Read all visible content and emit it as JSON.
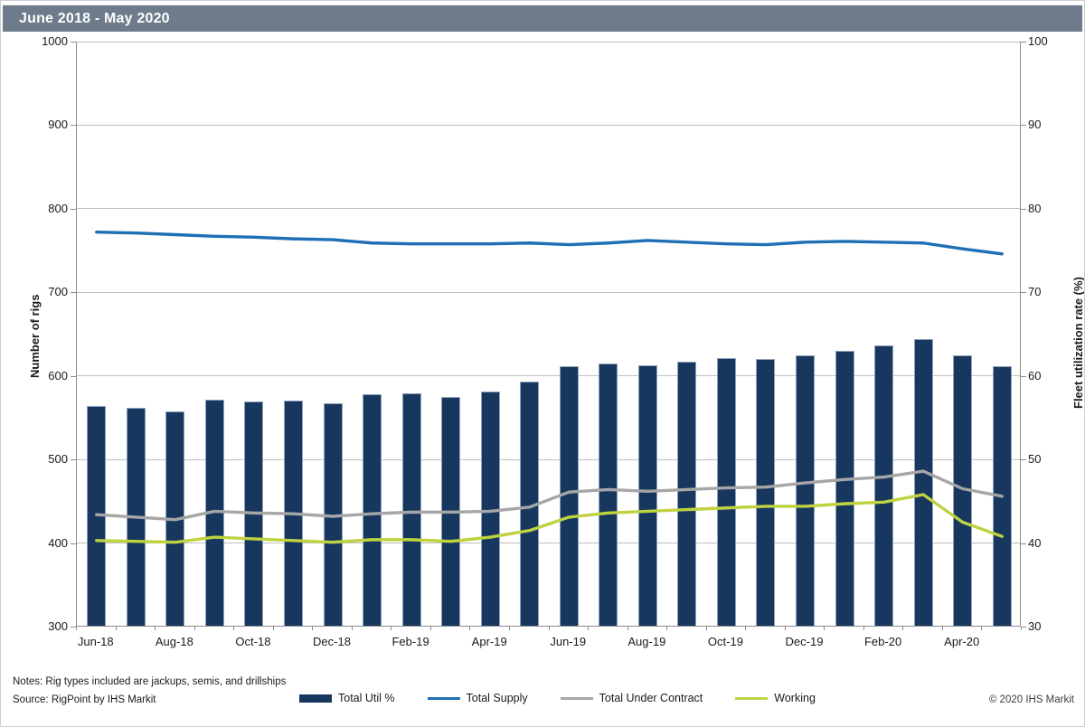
{
  "header": {
    "title": "June 2018 - May 2020"
  },
  "colors": {
    "title_bar": "#6D7B8A",
    "bar_fill": "#17375E",
    "bar_edge": "#8FA2BC",
    "supply_line": "#1F6FB5",
    "contract_line": "#A6A6A6",
    "working_line": "#BFD23F",
    "gridline": "#BFBFBF",
    "axis_line": "#8C8C8C",
    "text": "#1A1A1A"
  },
  "chart_data": {
    "type": "combo-bar-line",
    "categories": [
      "Jun-18",
      "Jul-18",
      "Aug-18",
      "Sep-18",
      "Oct-18",
      "Nov-18",
      "Dec-18",
      "Jan-19",
      "Feb-19",
      "Mar-19",
      "Apr-19",
      "May-19",
      "Jun-19",
      "Jul-19",
      "Aug-19",
      "Sep-19",
      "Oct-19",
      "Nov-19",
      "Dec-19",
      "Jan-20",
      "Feb-20",
      "Mar-20",
      "Apr-20",
      "May-20"
    ],
    "x_tick_labels": [
      "Jun-18",
      "Aug-18",
      "Oct-18",
      "Dec-18",
      "Feb-19",
      "Apr-19",
      "Jun-19",
      "Aug-19",
      "Oct-19",
      "Dec-19",
      "Feb-20",
      "Apr-20"
    ],
    "left_axis": {
      "label": "Number of rigs",
      "min": 300,
      "max": 1000,
      "step": 100,
      "ticks": [
        300,
        400,
        500,
        600,
        700,
        800,
        900,
        1000
      ]
    },
    "right_axis": {
      "label": "Fleet utilization rate (%)",
      "min": 30,
      "max": 100,
      "step": 10,
      "ticks": [
        30,
        40,
        50,
        60,
        70,
        80,
        90,
        100
      ]
    },
    "grid": "horizontal",
    "legend_position": "bottom",
    "series": [
      {
        "name": "Total Util %",
        "type": "bar",
        "axis": "right",
        "color": "#17375E",
        "values": [
          56.3,
          56.1,
          55.6,
          57.0,
          56.8,
          56.9,
          56.6,
          57.7,
          57.8,
          57.4,
          58.0,
          59.2,
          61.1,
          61.4,
          61.2,
          61.6,
          62.0,
          61.9,
          62.3,
          62.9,
          63.5,
          64.3,
          62.3,
          61.1
        ]
      },
      {
        "name": "Total Supply",
        "type": "line",
        "axis": "left",
        "color": "#1F6FB5",
        "values": [
          772,
          771,
          769,
          767,
          766,
          764,
          763,
          759,
          758,
          758,
          758,
          759,
          757,
          759,
          762,
          760,
          758,
          757,
          760,
          761,
          760,
          759,
          752,
          746
        ]
      },
      {
        "name": "Total Under Contract",
        "type": "line",
        "axis": "left",
        "color": "#A6A6A6",
        "values": [
          434,
          431,
          428,
          438,
          436,
          435,
          432,
          435,
          437,
          437,
          438,
          443,
          461,
          464,
          462,
          464,
          466,
          467,
          472,
          476,
          479,
          486,
          465,
          456
        ]
      },
      {
        "name": "Working",
        "type": "line",
        "axis": "left",
        "color": "#BFD23F",
        "values": [
          403,
          402,
          401,
          407,
          405,
          403,
          401,
          404,
          404,
          402,
          407,
          415,
          431,
          436,
          438,
          440,
          442,
          444,
          444,
          447,
          449,
          458,
          425,
          408
        ]
      }
    ]
  },
  "footer": {
    "notes": "Notes: Rig types included are jackups, semis, and drillships",
    "source": "Source: RigPoint by IHS Markit",
    "copyright": "© 2020 IHS Markit"
  }
}
